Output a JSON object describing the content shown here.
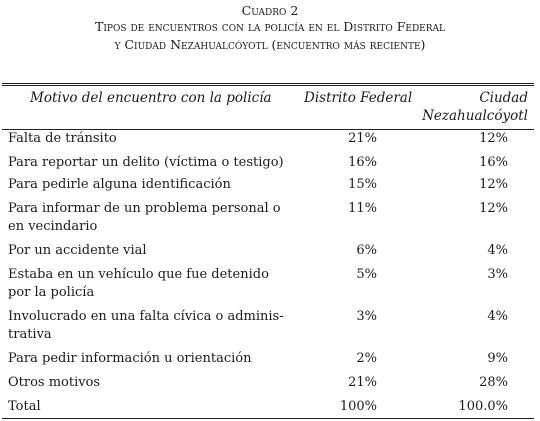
{
  "caption": {
    "line1": "Cuadro 2",
    "line2": "Tipos de encuentros con la policía en el Distrito Federal",
    "line3": "y Ciudad Nezahualcóyotl (encuentro más reciente)"
  },
  "headers": {
    "motivo": "Motivo del encuentro con la policía",
    "distrito_federal": "Distrito Federal",
    "ciudad_line1": "Ciudad",
    "ciudad_line2": "Nezahualcóyotl"
  },
  "rows": [
    {
      "motivo": [
        "Falta de tránsito"
      ],
      "df": "21%",
      "cn": "12%"
    },
    {
      "motivo": [
        "Para reportar un delito (víctima o testigo)"
      ],
      "df": "16%",
      "cn": "16%"
    },
    {
      "motivo": [
        "Para pedirle alguna identificación"
      ],
      "df": "15%",
      "cn": "12%"
    },
    {
      "motivo": [
        "Para informar de un problema personal o",
        "en vecindario"
      ],
      "df": "11%",
      "cn": "12%"
    },
    {
      "motivo": [
        "Por un accidente vial"
      ],
      "df": "6%",
      "cn": "4%"
    },
    {
      "motivo": [
        "Estaba en un vehículo que fue detenido",
        "por la policía"
      ],
      "df": "5%",
      "cn": "3%"
    },
    {
      "motivo": [
        "Involucrado en una falta cívica o adminis-",
        "trativa"
      ],
      "df": "3%",
      "cn": "4%"
    },
    {
      "motivo": [
        "Para pedir información u orientación"
      ],
      "df": "2%",
      "cn": "9%"
    },
    {
      "motivo": [
        "Otros motivos"
      ],
      "df": "21%",
      "cn": "28%"
    },
    {
      "motivo": [
        "Total"
      ],
      "df": "100%",
      "cn": "100.0%"
    }
  ]
}
